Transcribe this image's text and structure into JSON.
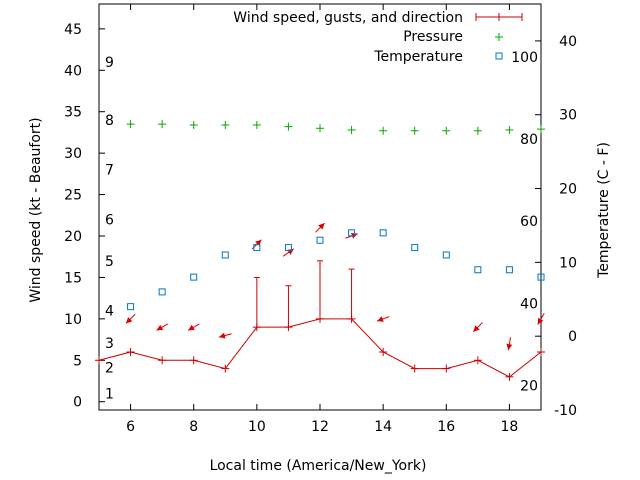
{
  "chart_data": {
    "type": "line",
    "xlabel": "Local time (America/New_York)",
    "ylabel_left": "Wind speed (kt - Beaufort)",
    "ylabel_right": "Temperature (C - F)",
    "x_range": [
      5,
      19
    ],
    "x_ticks": [
      6,
      8,
      10,
      12,
      14,
      16,
      18
    ],
    "wind_range": [
      -1,
      48
    ],
    "wind_ticks": [
      0,
      5,
      10,
      15,
      20,
      25,
      30,
      35,
      40,
      45
    ],
    "beaufort_labels": [
      {
        "label": "1",
        "wind": 1.0
      },
      {
        "label": "2",
        "wind": 4.1
      },
      {
        "label": "3",
        "wind": 7.1
      },
      {
        "label": "4",
        "wind": 11.0
      },
      {
        "label": "5",
        "wind": 17.0
      },
      {
        "label": "6",
        "wind": 22.0
      },
      {
        "label": "7",
        "wind": 28.0
      },
      {
        "label": "8",
        "wind": 34.0
      },
      {
        "label": "9",
        "wind": 41.0
      }
    ],
    "temp_c_range": [
      -10,
      45
    ],
    "temp_c_ticks": [
      -10,
      0,
      10,
      20,
      30,
      40
    ],
    "temp_f_labels": [
      {
        "label": "20",
        "temp_c": -6.7
      },
      {
        "label": "40",
        "temp_c": 4.4
      },
      {
        "label": "60",
        "temp_c": 15.6
      },
      {
        "label": "80",
        "temp_c": 26.7
      },
      {
        "label": "100",
        "temp_c": 37.8
      }
    ],
    "legend_position": "top-right",
    "colors": {
      "wind": "#cc0000",
      "arrows": "#e00000",
      "pressure": "#00aa00",
      "temperature": "#0077cc"
    },
    "series": [
      {
        "name": "Wind speed, gusts, and direction",
        "type": "line-with-gust-bars",
        "x": [
          5,
          6,
          7,
          8,
          9,
          10,
          11,
          12,
          13,
          14,
          15,
          16,
          17,
          18,
          19
        ],
        "y": [
          5,
          6,
          5,
          5,
          4,
          9,
          9,
          10,
          10,
          6,
          4,
          4,
          5,
          3,
          6
        ],
        "gusts": [
          null,
          null,
          null,
          null,
          null,
          15,
          14,
          17,
          16,
          null,
          null,
          null,
          null,
          null,
          null
        ]
      },
      {
        "name": "Wind direction",
        "type": "arrows",
        "x": [
          6,
          7,
          8,
          9,
          10,
          11,
          12,
          13,
          14,
          17,
          18,
          19
        ],
        "y": [
          10,
          9,
          9,
          8,
          19,
          18,
          21,
          20,
          10,
          9,
          7,
          10
        ],
        "direction_from_deg": [
          45,
          60,
          60,
          75,
          225,
          235,
          225,
          250,
          70,
          45,
          10,
          30
        ]
      },
      {
        "name": "Pressure",
        "type": "scatter",
        "marker": "+",
        "x": [
          6,
          7,
          8,
          9,
          10,
          11,
          12,
          13,
          14,
          15,
          16,
          17,
          18,
          19
        ],
        "y": [
          33.5,
          33.5,
          33.4,
          33.4,
          33.4,
          33.2,
          33.0,
          32.8,
          32.7,
          32.7,
          32.7,
          32.7,
          32.8,
          32.9
        ]
      },
      {
        "name": "Temperature",
        "type": "scatter",
        "marker": "square",
        "unit": "C",
        "x": [
          6,
          7,
          8,
          9,
          10,
          11,
          12,
          13,
          14,
          15,
          16,
          17,
          18,
          19
        ],
        "y": [
          4,
          6,
          8,
          11,
          12,
          12,
          13,
          14,
          14,
          12,
          11,
          9,
          9,
          8
        ]
      }
    ]
  }
}
